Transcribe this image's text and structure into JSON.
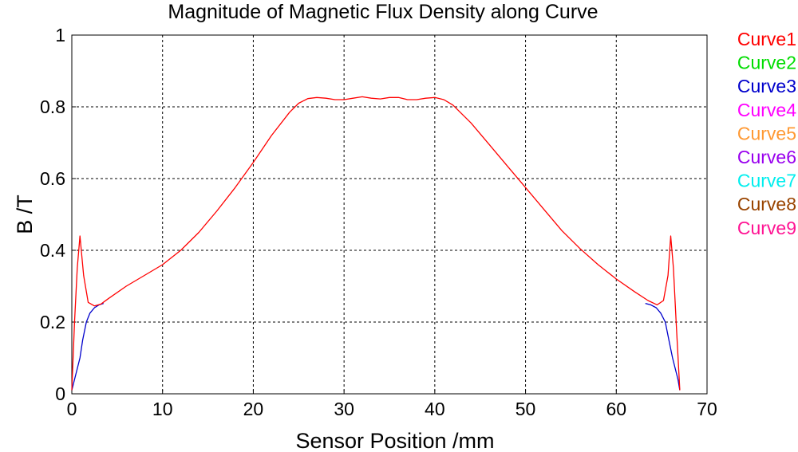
{
  "chart_data": {
    "type": "line",
    "title": "Magnitude of Magnetic Flux Density along Curve",
    "xlabel": "Sensor Position /mm",
    "ylabel": "B /T",
    "xlim": [
      0,
      70
    ],
    "ylim": [
      0,
      1
    ],
    "xticks": [
      "0",
      "10",
      "20",
      "30",
      "40",
      "50",
      "60",
      "70"
    ],
    "yticks": [
      "0",
      "0.2",
      "0.4",
      "0.6",
      "0.8",
      "1"
    ],
    "grid": true,
    "legend_position": "right",
    "series": [
      {
        "name": "Curve1",
        "color": "#ff0000",
        "x": [
          0,
          0.3,
          0.6,
          0.9,
          1.3,
          1.8,
          2.5,
          3.2,
          4,
          6,
          8,
          10,
          12,
          14,
          16,
          18,
          20,
          22,
          24,
          25,
          26,
          27,
          28,
          29,
          30,
          31,
          32,
          33,
          34,
          35,
          36,
          37,
          38,
          39,
          40,
          41,
          42,
          44,
          46,
          48,
          50,
          52,
          54,
          56,
          58,
          60,
          62,
          63.5,
          64.5,
          65.2,
          65.7,
          66,
          66.3,
          66.6,
          67
        ],
        "y": [
          0.01,
          0.2,
          0.35,
          0.44,
          0.33,
          0.255,
          0.245,
          0.25,
          0.265,
          0.3,
          0.33,
          0.36,
          0.4,
          0.45,
          0.51,
          0.575,
          0.645,
          0.72,
          0.785,
          0.81,
          0.823,
          0.826,
          0.824,
          0.82,
          0.82,
          0.824,
          0.828,
          0.824,
          0.822,
          0.826,
          0.826,
          0.82,
          0.82,
          0.824,
          0.826,
          0.82,
          0.805,
          0.755,
          0.695,
          0.635,
          0.575,
          0.515,
          0.455,
          0.405,
          0.36,
          0.32,
          0.285,
          0.26,
          0.248,
          0.26,
          0.33,
          0.44,
          0.35,
          0.2,
          0.01
        ]
      },
      {
        "name": "Curve2",
        "color": "#00dd00",
        "x": [],
        "y": []
      },
      {
        "name": "Curve3",
        "color": "#0000cc",
        "x": [
          0,
          0.3,
          0.6,
          0.9,
          1.2,
          1.6,
          2,
          2.5,
          3,
          3.5,
          63.2,
          63.8,
          64.4,
          64.9,
          65.4,
          65.8,
          66.2,
          66.5,
          66.8,
          67
        ],
        "y": [
          0.01,
          0.04,
          0.07,
          0.1,
          0.15,
          0.2,
          0.225,
          0.24,
          0.248,
          0.252,
          0.252,
          0.248,
          0.24,
          0.225,
          0.2,
          0.15,
          0.1,
          0.07,
          0.04,
          0.01
        ]
      },
      {
        "name": "Curve4",
        "color": "#ff00ff",
        "x": [],
        "y": []
      },
      {
        "name": "Curve5",
        "color": "#ff9933",
        "x": [],
        "y": []
      },
      {
        "name": "Curve6",
        "color": "#9900ee",
        "x": [],
        "y": []
      },
      {
        "name": "Curve7",
        "color": "#00eeee",
        "x": [],
        "y": []
      },
      {
        "name": "Curve8",
        "color": "#994400",
        "x": [],
        "y": []
      },
      {
        "name": "Curve9",
        "color": "#ff1493",
        "x": [],
        "y": []
      }
    ]
  }
}
